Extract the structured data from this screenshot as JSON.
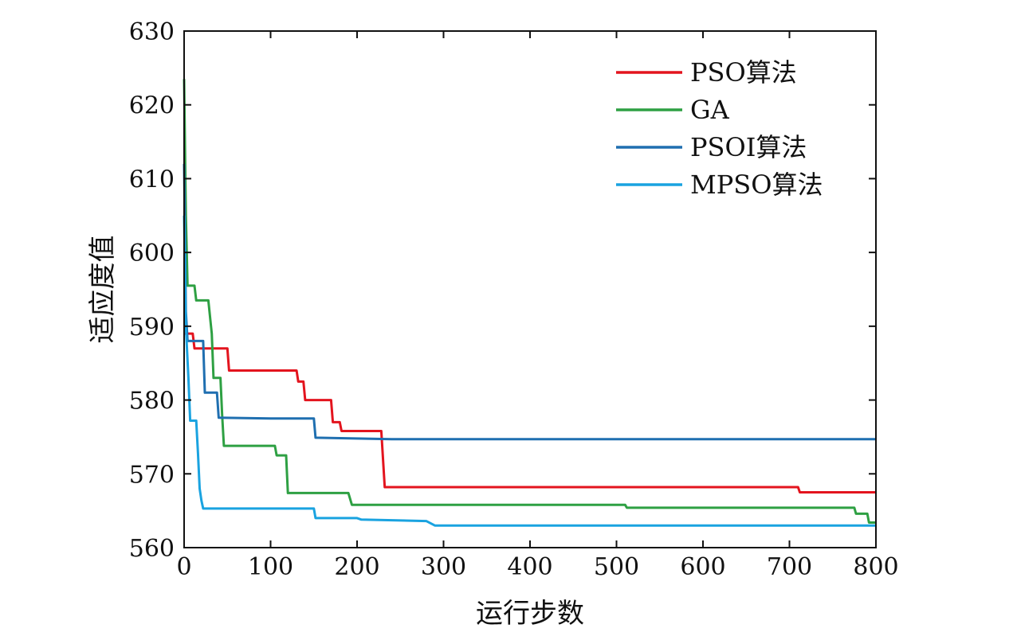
{
  "chart_data": {
    "type": "line",
    "title": "",
    "xlabel": "运行步数",
    "ylabel": "适应度值",
    "xlim": [
      0,
      800
    ],
    "ylim": [
      560,
      630
    ],
    "xticks": [
      0,
      100,
      200,
      300,
      400,
      500,
      600,
      700,
      800
    ],
    "yticks": [
      560,
      570,
      580,
      590,
      600,
      610,
      620,
      630
    ],
    "grid": false,
    "legend": "top-right",
    "series": [
      {
        "name": "PSO算法",
        "color": "#e3141e",
        "points": [
          [
            0,
            589
          ],
          [
            10,
            589
          ],
          [
            12,
            587
          ],
          [
            50,
            587
          ],
          [
            52,
            584
          ],
          [
            130,
            584
          ],
          [
            132,
            582.5
          ],
          [
            138,
            582.5
          ],
          [
            140,
            580
          ],
          [
            170,
            580
          ],
          [
            172,
            577
          ],
          [
            180,
            577
          ],
          [
            182,
            575.8
          ],
          [
            228,
            575.8
          ],
          [
            232,
            568.2
          ],
          [
            710,
            568.2
          ],
          [
            712,
            567.5
          ],
          [
            800,
            567.5
          ]
        ]
      },
      {
        "name": "GA",
        "color": "#2ea043",
        "points": [
          [
            0,
            623.5
          ],
          [
            2,
            605
          ],
          [
            4,
            595.5
          ],
          [
            12,
            595.5
          ],
          [
            14,
            593.5
          ],
          [
            28,
            593.5
          ],
          [
            32,
            589
          ],
          [
            34,
            583
          ],
          [
            42,
            583
          ],
          [
            44,
            578
          ],
          [
            46,
            573.8
          ],
          [
            105,
            573.8
          ],
          [
            107,
            572.5
          ],
          [
            118,
            572.5
          ],
          [
            120,
            567.4
          ],
          [
            190,
            567.4
          ],
          [
            194,
            565.8
          ],
          [
            510,
            565.8
          ],
          [
            512,
            565.4
          ],
          [
            775,
            565.4
          ],
          [
            777,
            564.6
          ],
          [
            790,
            564.6
          ],
          [
            792,
            563.4
          ],
          [
            800,
            563.4
          ]
        ]
      },
      {
        "name": "PSOI算法",
        "color": "#1f6fb0",
        "points": [
          [
            0,
            612
          ],
          [
            2,
            592
          ],
          [
            4,
            588
          ],
          [
            22,
            588
          ],
          [
            24,
            581
          ],
          [
            38,
            581
          ],
          [
            40,
            577.6
          ],
          [
            100,
            577.5
          ],
          [
            150,
            577.5
          ],
          [
            152,
            574.9
          ],
          [
            240,
            574.7
          ],
          [
            800,
            574.7
          ]
        ]
      },
      {
        "name": "MPSO算法",
        "color": "#1aa3e0",
        "points": [
          [
            0,
            605
          ],
          [
            2,
            590
          ],
          [
            5,
            583
          ],
          [
            7,
            577.2
          ],
          [
            14,
            577.2
          ],
          [
            16,
            572.8
          ],
          [
            18,
            568
          ],
          [
            20,
            566.4
          ],
          [
            22,
            565.3
          ],
          [
            150,
            565.3
          ],
          [
            152,
            564
          ],
          [
            200,
            564
          ],
          [
            205,
            563.8
          ],
          [
            280,
            563.6
          ],
          [
            290,
            563
          ],
          [
            800,
            563
          ]
        ]
      }
    ]
  }
}
